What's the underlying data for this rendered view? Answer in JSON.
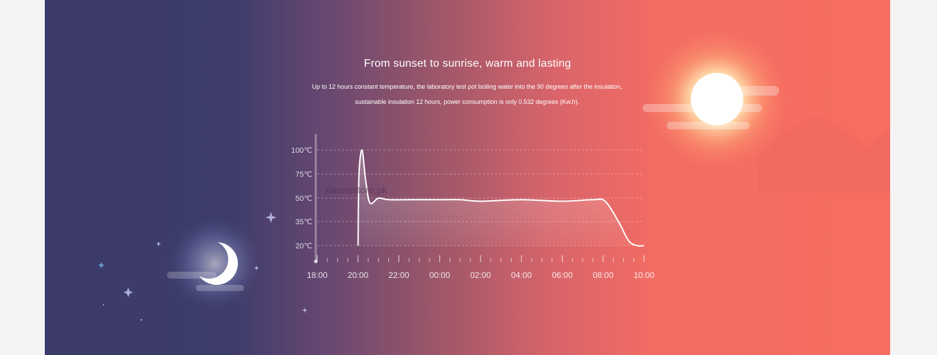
{
  "banner": {
    "title": "From sunset to sunrise, warm and lasting",
    "subtitle_line1": "Up to 12 hours constant temperature, the laboratory test pot boiling water into the 90 degrees after the insulation,",
    "subtitle_line2": "sustainable insulation 12 hours, power consumption is only 0.532 degrees (Kw.h).",
    "watermark": "xiaomistore.pk"
  },
  "colors": {
    "night": "#3b3a6b",
    "dusk": "#a05769",
    "day": "#f86d62",
    "curve": "#ffffff"
  },
  "icons": [
    "moon-icon",
    "sun-icon",
    "star-icon",
    "cloud-icon",
    "mountain-icon"
  ],
  "chart_data": {
    "type": "line",
    "title": "",
    "xlabel": "",
    "ylabel": "",
    "y_tick_labels": [
      "100℃",
      "75℃",
      "50℃",
      "35℃",
      "20℃"
    ],
    "x_tick_labels": [
      "18:00",
      "20:00",
      "22:00",
      "00:00",
      "02:00",
      "04:00",
      "06:00",
      "08:00",
      "10:00"
    ],
    "y_levels": [
      100,
      75,
      50,
      35,
      20
    ],
    "grid": "dashed horizontal",
    "legend": "none",
    "series": [
      {
        "points": [
          [
            "20:00",
            20
          ],
          [
            "20:03",
            75
          ],
          [
            "20:12",
            100
          ],
          [
            "20:22",
            70
          ],
          [
            "20:35",
            47
          ],
          [
            "21:00",
            50
          ],
          [
            "21:30",
            49
          ],
          [
            "22:30",
            49
          ],
          [
            "00:00",
            49
          ],
          [
            "01:00",
            49
          ],
          [
            "02:00",
            48
          ],
          [
            "04:00",
            49
          ],
          [
            "06:00",
            48
          ],
          [
            "07:30",
            49
          ],
          [
            "08:06",
            48
          ],
          [
            "08:45",
            35
          ],
          [
            "09:15",
            23
          ],
          [
            "09:40",
            20
          ],
          [
            "10:00",
            20
          ]
        ]
      }
    ]
  }
}
